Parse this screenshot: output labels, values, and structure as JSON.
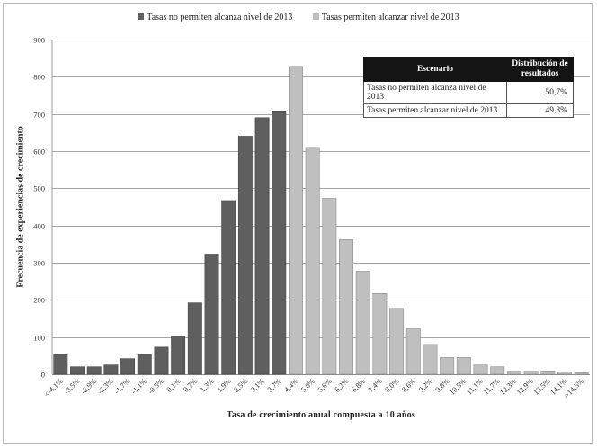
{
  "legend": [
    {
      "label": "Tasas no permiten alcanza nivel de 2013",
      "color": "#5f5f5f"
    },
    {
      "label": "Tasas permiten alcanzar nivel de 2013",
      "color": "#bfbfbf"
    }
  ],
  "table": {
    "headers": [
      "Escenario",
      "Distribución de resultados"
    ],
    "rows": [
      {
        "label": "Tasas no permiten alcanza nivel de 2013",
        "value": "50,7%"
      },
      {
        "label": "Tasas permiten alcanzar nivel de 2013",
        "value": "49,3%"
      }
    ]
  },
  "chart_data": {
    "type": "bar",
    "title": "",
    "xlabel": "Tasa de crecimiento anual compuesta  a 10 años",
    "ylabel": "Frecuencia de experiencias de crecimiento",
    "ylim": [
      0,
      900
    ],
    "yticks": [
      0,
      100,
      200,
      300,
      400,
      500,
      600,
      700,
      800,
      900
    ],
    "grid": true,
    "legend_position": "top",
    "categories": [
      "<-4,1%",
      "-3,5%",
      "-2,9%",
      "-2,3%",
      "-1,7%",
      "-1,1%",
      "-0,5%",
      "0,1%",
      "0,7%",
      "1,3%",
      "1,9%",
      "2,5%",
      "3,1%",
      "3,7%",
      "4,4%",
      "5,0%",
      "5,6%",
      "6,2%",
      "6,8%",
      "7,4%",
      "8,0%",
      "8,6%",
      "9,2%",
      "9,8%",
      "10,5%",
      "11,1%",
      "11,7%",
      "12,3%",
      "12,9%",
      "13,5%",
      "14,1%",
      ">14,5%"
    ],
    "values": [
      53,
      20,
      20,
      25,
      42,
      53,
      73,
      102,
      192,
      323,
      467,
      640,
      690,
      708,
      828,
      610,
      473,
      362,
      277,
      217,
      177,
      122,
      80,
      45,
      45,
      25,
      20,
      8,
      8,
      9,
      6,
      4
    ],
    "series_index": [
      0,
      0,
      0,
      0,
      0,
      0,
      0,
      0,
      0,
      0,
      0,
      0,
      0,
      0,
      1,
      1,
      1,
      1,
      1,
      1,
      1,
      1,
      1,
      1,
      1,
      1,
      1,
      1,
      1,
      1,
      1,
      1
    ],
    "colors": [
      "#5f5f5f",
      "#bfbfbf"
    ]
  }
}
